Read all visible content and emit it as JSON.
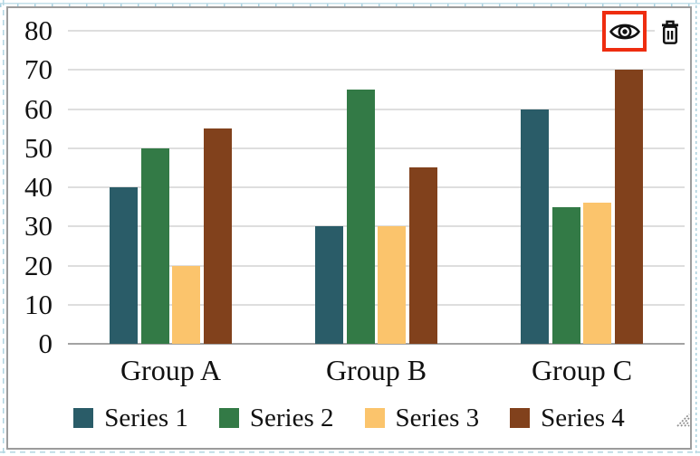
{
  "widget": {
    "kind": "chart-widget",
    "toolbar": {
      "buttons": [
        {
          "icon": "eye-icon",
          "highlighted": true
        },
        {
          "icon": "trash-icon",
          "highlighted": false
        }
      ],
      "highlight_color": "#ee2d10"
    },
    "has_resize_handle": true
  },
  "chart_data": {
    "type": "bar",
    "title": "",
    "xlabel": "",
    "ylabel": "",
    "categories": [
      "Group A",
      "Group B",
      "Group C"
    ],
    "series": [
      {
        "name": "Series 1",
        "color": "#2a5c68",
        "values": [
          40,
          30,
          60
        ]
      },
      {
        "name": "Series 2",
        "color": "#337a46",
        "values": [
          50,
          65,
          35
        ]
      },
      {
        "name": "Series 3",
        "color": "#fbc46c",
        "values": [
          20,
          30,
          36
        ]
      },
      {
        "name": "Series 4",
        "color": "#81411c",
        "values": [
          55,
          45,
          70
        ]
      }
    ],
    "ylim": [
      0,
      80
    ],
    "yticks": [
      0,
      10,
      20,
      30,
      40,
      50,
      60,
      70,
      80
    ],
    "grid": true,
    "legend_position": "bottom"
  }
}
